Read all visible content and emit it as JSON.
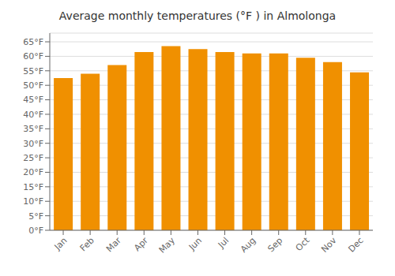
{
  "chart_data": {
    "type": "bar",
    "title": "Average monthly temperatures (°F ) in Almolonga",
    "categories": [
      "Jan",
      "Feb",
      "Mar",
      "Apr",
      "May",
      "Jun",
      "Jul",
      "Aug",
      "Sep",
      "Oct",
      "Nov",
      "Dec"
    ],
    "values": [
      52.5,
      54.0,
      57.0,
      61.5,
      63.5,
      62.5,
      61.5,
      61.0,
      61.0,
      59.5,
      58.0,
      54.5
    ],
    "color": "#F09000",
    "ylim": [
      0,
      68
    ],
    "yticks": [
      {
        "value": 0,
        "label": "0°F"
      },
      {
        "value": 5,
        "label": "5°F"
      },
      {
        "value": 10,
        "label": "10°F"
      },
      {
        "value": 15,
        "label": "15°F"
      },
      {
        "value": 20,
        "label": "20°F"
      },
      {
        "value": 25,
        "label": "25°F"
      },
      {
        "value": 30,
        "label": "30°F"
      },
      {
        "value": 35,
        "label": "35°F"
      },
      {
        "value": 40,
        "label": "40°F"
      },
      {
        "value": 45,
        "label": "45°F"
      },
      {
        "value": 50,
        "label": "50°F"
      },
      {
        "value": 55,
        "label": "55°F"
      },
      {
        "value": 60,
        "label": "60°F"
      },
      {
        "value": 65,
        "label": "65°F"
      }
    ],
    "grid": true
  }
}
